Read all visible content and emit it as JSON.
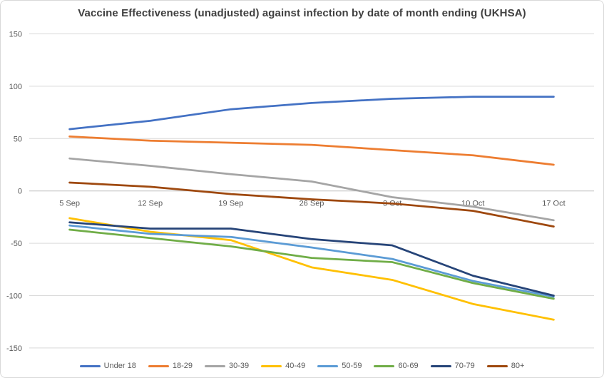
{
  "title": "Vaccine Effectiveness (unadjusted) against infection by date of month ending (UKHSA)",
  "colors": {
    "title_text": "#404040",
    "axis_text": "#595959",
    "gridline": "#d9d9d9",
    "axis_line": "#bfbfbf",
    "background": "#ffffff"
  },
  "chart_data": {
    "type": "line",
    "title": "Vaccine Effectiveness (unadjusted) against infection by date of month ending (UKHSA)",
    "xlabel": "",
    "ylabel": "",
    "categories": [
      "5 Sep",
      "12 Sep",
      "19 Sep",
      "26 Sep",
      "3 Oct",
      "10 Oct",
      "17 Oct"
    ],
    "y_ticks": [
      150,
      100,
      50,
      0,
      -50,
      -100,
      -150
    ],
    "ylim": [
      -150,
      150
    ],
    "grid": "horizontal",
    "legend_position": "bottom",
    "series": [
      {
        "name": "Under 18",
        "color": "#4472C4",
        "values": [
          59,
          67,
          78,
          84,
          88,
          90,
          90
        ]
      },
      {
        "name": "18-29",
        "color": "#ED7D31",
        "values": [
          52,
          48,
          46,
          44,
          39,
          34,
          25
        ]
      },
      {
        "name": "30-39",
        "color": "#A5A5A5",
        "values": [
          31,
          24,
          16,
          9,
          -6,
          -15,
          -28
        ]
      },
      {
        "name": "40-49",
        "color": "#FFC000",
        "values": [
          -26,
          -39,
          -47,
          -73,
          -85,
          -108,
          -123
        ]
      },
      {
        "name": "50-59",
        "color": "#5B9BD5",
        "values": [
          -33,
          -41,
          -44,
          -54,
          -65,
          -86,
          -101
        ]
      },
      {
        "name": "60-69",
        "color": "#70AD47",
        "values": [
          -37,
          -45,
          -53,
          -64,
          -68,
          -88,
          -103
        ]
      },
      {
        "name": "70-79",
        "color": "#264478",
        "values": [
          -30,
          -36,
          -36,
          -46,
          -52,
          -81,
          -100
        ]
      },
      {
        "name": "80+",
        "color": "#9E480E",
        "values": [
          8,
          4,
          -3,
          -8,
          -12,
          -19,
          -34
        ]
      }
    ]
  }
}
